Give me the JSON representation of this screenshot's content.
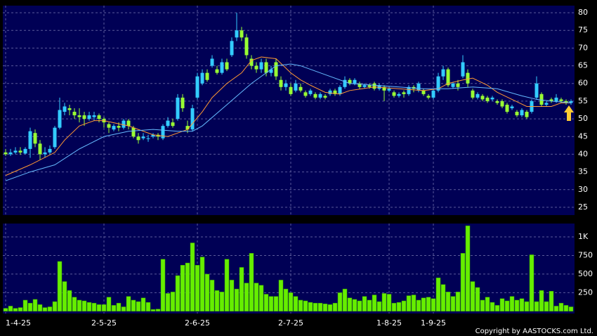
{
  "chart_data": [
    {
      "type": "candlestick",
      "up_color": "#33ccff",
      "down_color": "#99ff33",
      "open": [
        40.5,
        40,
        40.5,
        41,
        40.2,
        41.5,
        46,
        43,
        40,
        40.5,
        42,
        47.5,
        52,
        53,
        52,
        51,
        51,
        50,
        50.5,
        51,
        50,
        48.5,
        47,
        48,
        47.5,
        49.5,
        47.5,
        45,
        44.5,
        44.5,
        45,
        45.5,
        44.5,
        48,
        49,
        50,
        56,
        48,
        47,
        56,
        60,
        63,
        65,
        64,
        63,
        66,
        68,
        73,
        75,
        73,
        67,
        65,
        64,
        66,
        63,
        66,
        61,
        59,
        59,
        58,
        59,
        57.5,
        57,
        57,
        56,
        56.5,
        57,
        58,
        57,
        59,
        61,
        60,
        60,
        59,
        59.5,
        60,
        58.5,
        59,
        58,
        57.5,
        56.5,
        57.5,
        57,
        59,
        58,
        58,
        56.5,
        56,
        58,
        62,
        64,
        59,
        60,
        62,
        63,
        58,
        56,
        56.5,
        56,
        55.5,
        55,
        55,
        54,
        53,
        52,
        51,
        52,
        52,
        56,
        57,
        54,
        55.5,
        55,
        55.5,
        55,
        54.5
      ],
      "high": [
        41.5,
        41.5,
        42,
        42,
        42,
        47.5,
        47,
        44,
        42,
        42.5,
        48,
        56,
        54.5,
        54,
        53,
        53,
        52,
        52,
        52,
        51.5,
        50.5,
        49,
        48.5,
        49,
        50,
        50,
        48,
        46,
        46,
        45.5,
        46,
        46,
        48.5,
        50.5,
        50,
        57,
        57,
        49.5,
        54,
        63,
        64,
        64,
        68,
        65,
        67,
        67,
        73,
        80,
        76,
        74,
        68,
        66,
        67,
        67,
        65,
        67,
        62,
        61,
        60,
        61,
        60,
        58,
        58.5,
        57.5,
        57.5,
        57,
        58.5,
        58.5,
        59.5,
        62,
        61.5,
        61.5,
        60.5,
        60,
        60,
        60.5,
        60,
        59.5,
        59,
        58,
        57.5,
        58,
        59.5,
        59.5,
        60.5,
        58.5,
        57,
        58.5,
        63,
        65,
        64.5,
        60.5,
        61,
        68,
        64,
        58.5,
        57.5,
        57,
        56.5,
        56.5,
        55.5,
        55.5,
        54.5,
        54,
        52.5,
        53,
        52.5,
        55.5,
        62,
        57.5,
        55,
        56,
        57,
        56,
        55.5,
        55.5
      ],
      "low": [
        39.5,
        39.5,
        40,
        39.8,
        40,
        39,
        42,
        38.5,
        39,
        40,
        41.5,
        47,
        51,
        51,
        50,
        49,
        48,
        49.5,
        49.5,
        49,
        47.5,
        46,
        46.5,
        46.5,
        47,
        47,
        44.5,
        43,
        44,
        43.5,
        44.5,
        44,
        44,
        47.5,
        47.5,
        49.5,
        52,
        46,
        46.5,
        55.5,
        59.5,
        60.5,
        64.5,
        62.5,
        62.5,
        63.5,
        67.5,
        72,
        72,
        67,
        64,
        63,
        63,
        62,
        62,
        61,
        58,
        58,
        56.5,
        57.5,
        57.5,
        56,
        56.5,
        55.5,
        55.5,
        55.5,
        56.5,
        56.5,
        56.5,
        58.5,
        59.5,
        59.5,
        58.5,
        58.5,
        58.5,
        58,
        58,
        55,
        57.5,
        56,
        56,
        56,
        56.5,
        57.5,
        57.5,
        56.5,
        55.5,
        55.5,
        57.5,
        61,
        59,
        58.5,
        58,
        61.5,
        59,
        55.5,
        55.5,
        55,
        54.5,
        55,
        54,
        53,
        51.5,
        52.5,
        50.5,
        50.5,
        50,
        51.5,
        55.5,
        53.5,
        53.5,
        54.5,
        54.5,
        54.5,
        54,
        54
      ],
      "close": [
        40,
        40.5,
        41,
        40.5,
        41.5,
        46.5,
        43,
        40,
        40.5,
        41.5,
        47.5,
        52.5,
        53.5,
        52.5,
        51,
        50.5,
        50,
        51,
        51,
        50,
        49,
        47.5,
        48,
        47.5,
        49.5,
        48,
        45,
        44,
        45,
        44.5,
        45.5,
        45,
        48,
        49.5,
        48,
        56,
        53,
        47,
        53,
        62,
        63,
        61,
        67,
        63,
        66,
        64,
        72,
        75,
        73,
        68,
        65,
        64,
        66,
        63,
        64,
        62,
        59,
        60,
        57,
        60,
        58,
        56.5,
        58,
        56,
        57,
        56,
        58,
        57,
        59,
        61,
        60,
        61,
        59,
        59.5,
        59,
        58.5,
        59.5,
        58,
        58.5,
        56.5,
        57,
        57,
        59,
        58.5,
        60,
        57,
        56,
        58,
        62,
        64,
        59.5,
        60,
        59,
        66,
        60,
        56,
        57,
        55.5,
        55,
        56,
        54.5,
        53.5,
        52,
        53.5,
        51,
        52.5,
        50.5,
        55,
        60,
        54,
        54.5,
        55,
        56,
        55,
        54.5,
        55
      ],
      "lines": [
        {
          "color": "#ff9933",
          "x": [
            0,
            5,
            10,
            12,
            15,
            18,
            20,
            25,
            30,
            33,
            35,
            37,
            40,
            42,
            45,
            48,
            50,
            52,
            55,
            58,
            60,
            62,
            65,
            68,
            70,
            75,
            80,
            85,
            88,
            90,
            93,
            95,
            98,
            100,
            103,
            106,
            108,
            111,
            113,
            115
          ],
          "values": [
            34,
            37,
            40.5,
            44,
            48,
            49.5,
            49.5,
            48,
            45.5,
            45,
            46,
            47,
            52,
            56,
            60,
            63,
            66.5,
            67.5,
            67,
            63,
            61,
            59.5,
            57.5,
            57,
            58,
            59,
            58.5,
            58,
            58.5,
            60,
            61,
            61.5,
            59.5,
            57.5,
            55.5,
            53.5,
            53.5,
            53.5,
            54.5,
            54.5
          ]
        },
        {
          "color": "#66bbff",
          "x": [
            0,
            5,
            10,
            15,
            20,
            25,
            30,
            35,
            38,
            40,
            45,
            50,
            53,
            55,
            58,
            60,
            65,
            70,
            75,
            80,
            85,
            90,
            95,
            100,
            105,
            108,
            111,
            115
          ],
          "values": [
            32.5,
            35,
            37,
            41.5,
            45,
            46.5,
            47,
            46.5,
            46.5,
            48,
            54,
            60,
            63,
            65,
            65.5,
            65,
            62.5,
            60,
            59.5,
            59,
            58.5,
            58.5,
            59,
            58.5,
            56.5,
            55.5,
            55,
            54.5
          ]
        }
      ],
      "ylim": [
        22.8,
        82
      ],
      "yticks": [
        25,
        30,
        35,
        40,
        45,
        50,
        55,
        60,
        65,
        70,
        75,
        80
      ],
      "grid": true
    },
    {
      "type": "bar",
      "color": "#66ee00",
      "categories": [
        "1-4-25",
        null,
        null,
        null,
        null,
        null,
        null,
        null,
        null,
        null,
        null,
        null,
        null,
        null,
        null,
        null,
        null,
        null,
        null,
        null,
        "2-5-25",
        null,
        null,
        null,
        null,
        null,
        null,
        null,
        null,
        null,
        null,
        null,
        null,
        null,
        null,
        null,
        null,
        null,
        null,
        "2-6-25",
        null,
        null,
        null,
        null,
        null,
        null,
        null,
        null,
        null,
        null,
        null,
        null,
        null,
        null,
        null,
        null,
        null,
        null,
        "2-7-25",
        null,
        null,
        null,
        null,
        null,
        null,
        null,
        null,
        null,
        null,
        null,
        null,
        null,
        null,
        null,
        null,
        null,
        null,
        null,
        "1-8-25",
        null,
        null,
        null,
        null,
        null,
        null,
        null,
        null,
        "1-9-25",
        null,
        null,
        null,
        null,
        null,
        null,
        null,
        null,
        null,
        null,
        null,
        null,
        null,
        null,
        null,
        null,
        null,
        null,
        null,
        null,
        null,
        null,
        null,
        null,
        null,
        null,
        null,
        null
      ],
      "values": [
        40,
        70,
        40,
        50,
        150,
        110,
        160,
        90,
        50,
        60,
        130,
        670,
        400,
        280,
        190,
        150,
        140,
        120,
        110,
        90,
        90,
        190,
        80,
        110,
        60,
        200,
        150,
        130,
        180,
        120,
        25,
        30,
        700,
        240,
        260,
        480,
        620,
        650,
        920,
        620,
        730,
        500,
        420,
        280,
        260,
        700,
        420,
        300,
        590,
        380,
        780,
        380,
        350,
        230,
        200,
        200,
        420,
        300,
        250,
        200,
        150,
        140,
        120,
        110,
        110,
        100,
        90,
        110,
        250,
        300,
        180,
        160,
        140,
        200,
        150,
        220,
        130,
        240,
        230,
        110,
        120,
        140,
        210,
        220,
        150,
        180,
        190,
        170,
        450,
        360,
        260,
        200,
        260,
        780,
        1150,
        400,
        320,
        150,
        190,
        120,
        80,
        170,
        140,
        200,
        150,
        170,
        130,
        760,
        130,
        280,
        130,
        270,
        70,
        110,
        80,
        60
      ],
      "ylim": [
        -30,
        1180
      ],
      "yticks": [
        250,
        500,
        750,
        {
          "value": 1000,
          "label": "1K"
        }
      ],
      "grid": true
    }
  ],
  "copyright": "Copyright by AASTOCKS.com Ltd."
}
